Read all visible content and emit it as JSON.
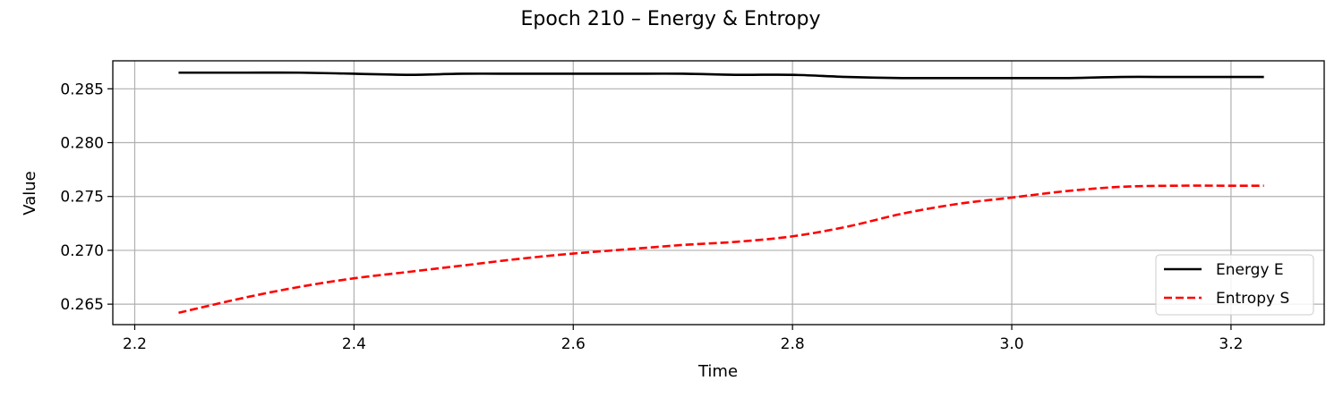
{
  "chart_data": {
    "type": "line",
    "title": "Epoch 210 – Energy & Entropy",
    "xlabel": "Time",
    "ylabel": "Value",
    "xlim": [
      2.18,
      3.285
    ],
    "ylim": [
      0.2631,
      0.2876
    ],
    "x_ticks": [
      2.2,
      2.4,
      2.6,
      2.8,
      3.0,
      3.2
    ],
    "x_tick_labels": [
      "2.2",
      "2.4",
      "2.6",
      "2.8",
      "3.0",
      "3.2"
    ],
    "y_ticks": [
      0.265,
      0.27,
      0.275,
      0.28,
      0.285
    ],
    "y_tick_labels": [
      "0.265",
      "0.270",
      "0.275",
      "0.280",
      "0.285"
    ],
    "grid": true,
    "legend_position": "lower-right",
    "series": [
      {
        "name": "Energy E",
        "color": "#000000",
        "dash": "solid",
        "x": [
          2.24,
          2.3,
          2.35,
          2.4,
          2.45,
          2.5,
          2.55,
          2.6,
          2.65,
          2.7,
          2.75,
          2.8,
          2.85,
          2.9,
          2.95,
          3.0,
          3.05,
          3.1,
          3.15,
          3.2,
          3.23
        ],
        "y": [
          0.2865,
          0.2865,
          0.2865,
          0.2864,
          0.2863,
          0.2864,
          0.2864,
          0.2864,
          0.2864,
          0.2864,
          0.2863,
          0.2863,
          0.2861,
          0.286,
          0.286,
          0.286,
          0.286,
          0.2861,
          0.2861,
          0.2861,
          0.2861
        ]
      },
      {
        "name": "Entropy S",
        "color": "#ff0000",
        "dash": "dashed",
        "x": [
          2.24,
          2.3,
          2.35,
          2.4,
          2.45,
          2.5,
          2.55,
          2.6,
          2.65,
          2.7,
          2.75,
          2.8,
          2.85,
          2.9,
          2.95,
          3.0,
          3.05,
          3.1,
          3.15,
          3.2,
          3.23
        ],
        "y": [
          0.2642,
          0.2656,
          0.2666,
          0.2674,
          0.268,
          0.2686,
          0.2692,
          0.2697,
          0.2701,
          0.2705,
          0.2708,
          0.2713,
          0.2722,
          0.2734,
          0.2743,
          0.2749,
          0.2755,
          0.2759,
          0.276,
          0.276,
          0.276
        ]
      }
    ]
  }
}
